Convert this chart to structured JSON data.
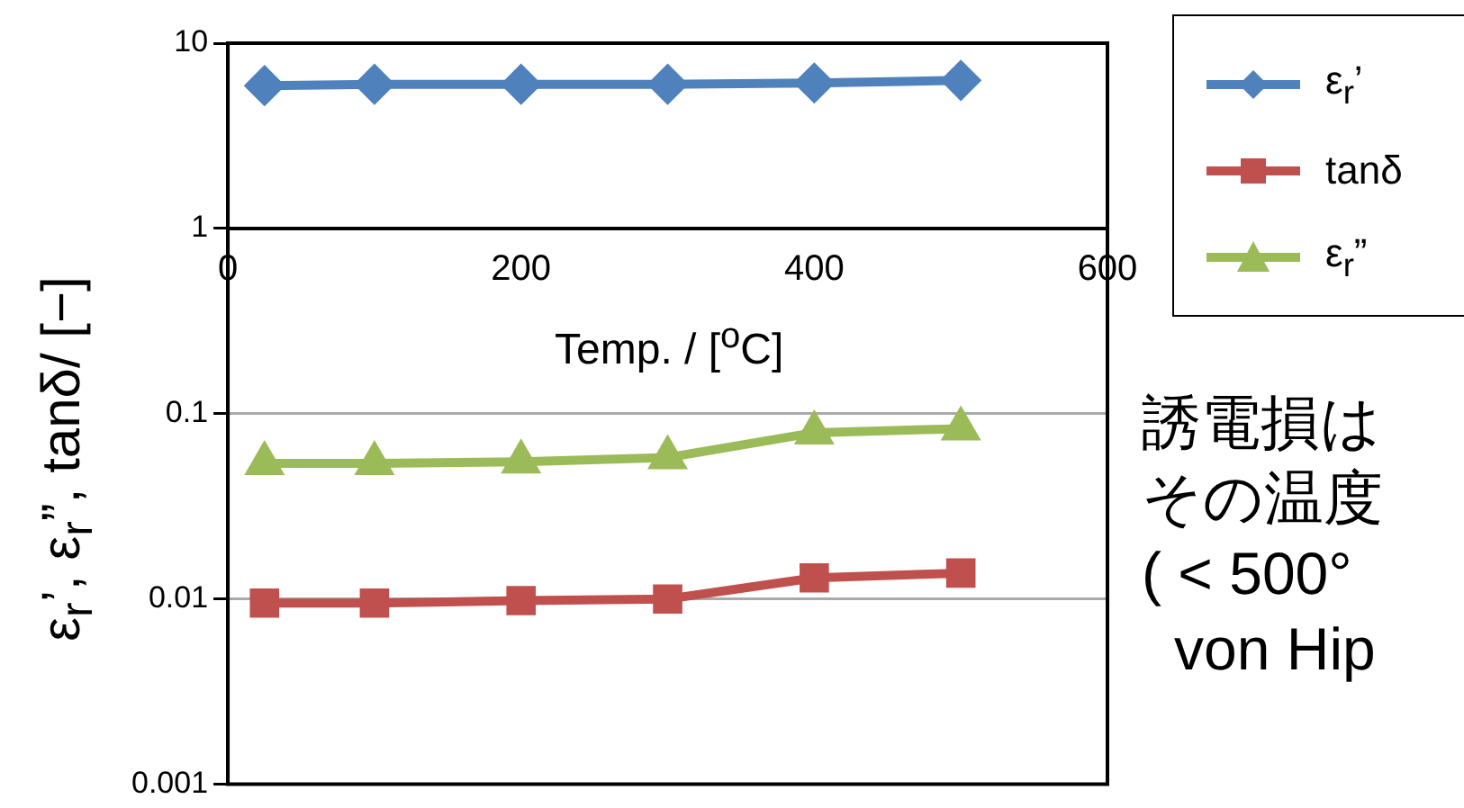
{
  "chart_data": {
    "type": "line",
    "xlabel": "Temp. / [$^{o}$C]",
    "ylabel": "ε$_{r}$’, ε$_{r}$”, tanδ/ [−]",
    "log": "y",
    "xlim": [
      0,
      600
    ],
    "xticks": [
      0,
      200,
      400,
      600
    ],
    "ylim": [
      0.001,
      10
    ],
    "yticks": [
      0.001,
      0.01,
      0.1,
      1,
      10
    ],
    "grid": "y",
    "legend": "top right",
    "line_style": "solid",
    "series": [
      {
        "name": "ε$_{r}$’",
        "color": "#4f81bd",
        "marker": "diamond",
        "x": [
          25,
          100,
          200,
          300,
          400,
          500
        ],
        "values": [
          5.9,
          6.0,
          6.0,
          6.0,
          6.1,
          6.3
        ]
      },
      {
        "name": "tanδ",
        "color": "#c0504d",
        "marker": "square",
        "x": [
          25,
          100,
          200,
          300,
          400,
          500
        ],
        "values": [
          0.0095,
          0.0095,
          0.0098,
          0.01,
          0.013,
          0.0138
        ]
      },
      {
        "name": "ε$_{r}$”",
        "color": "#9bbb59",
        "marker": "triangle",
        "x": [
          25,
          100,
          200,
          300,
          400,
          500
        ],
        "values": [
          0.054,
          0.054,
          0.055,
          0.058,
          0.079,
          0.083
        ]
      }
    ],
    "annotations": [
      "誘電損は",
      "その温度",
      "( < 500°",
      "von Hip"
    ]
  }
}
